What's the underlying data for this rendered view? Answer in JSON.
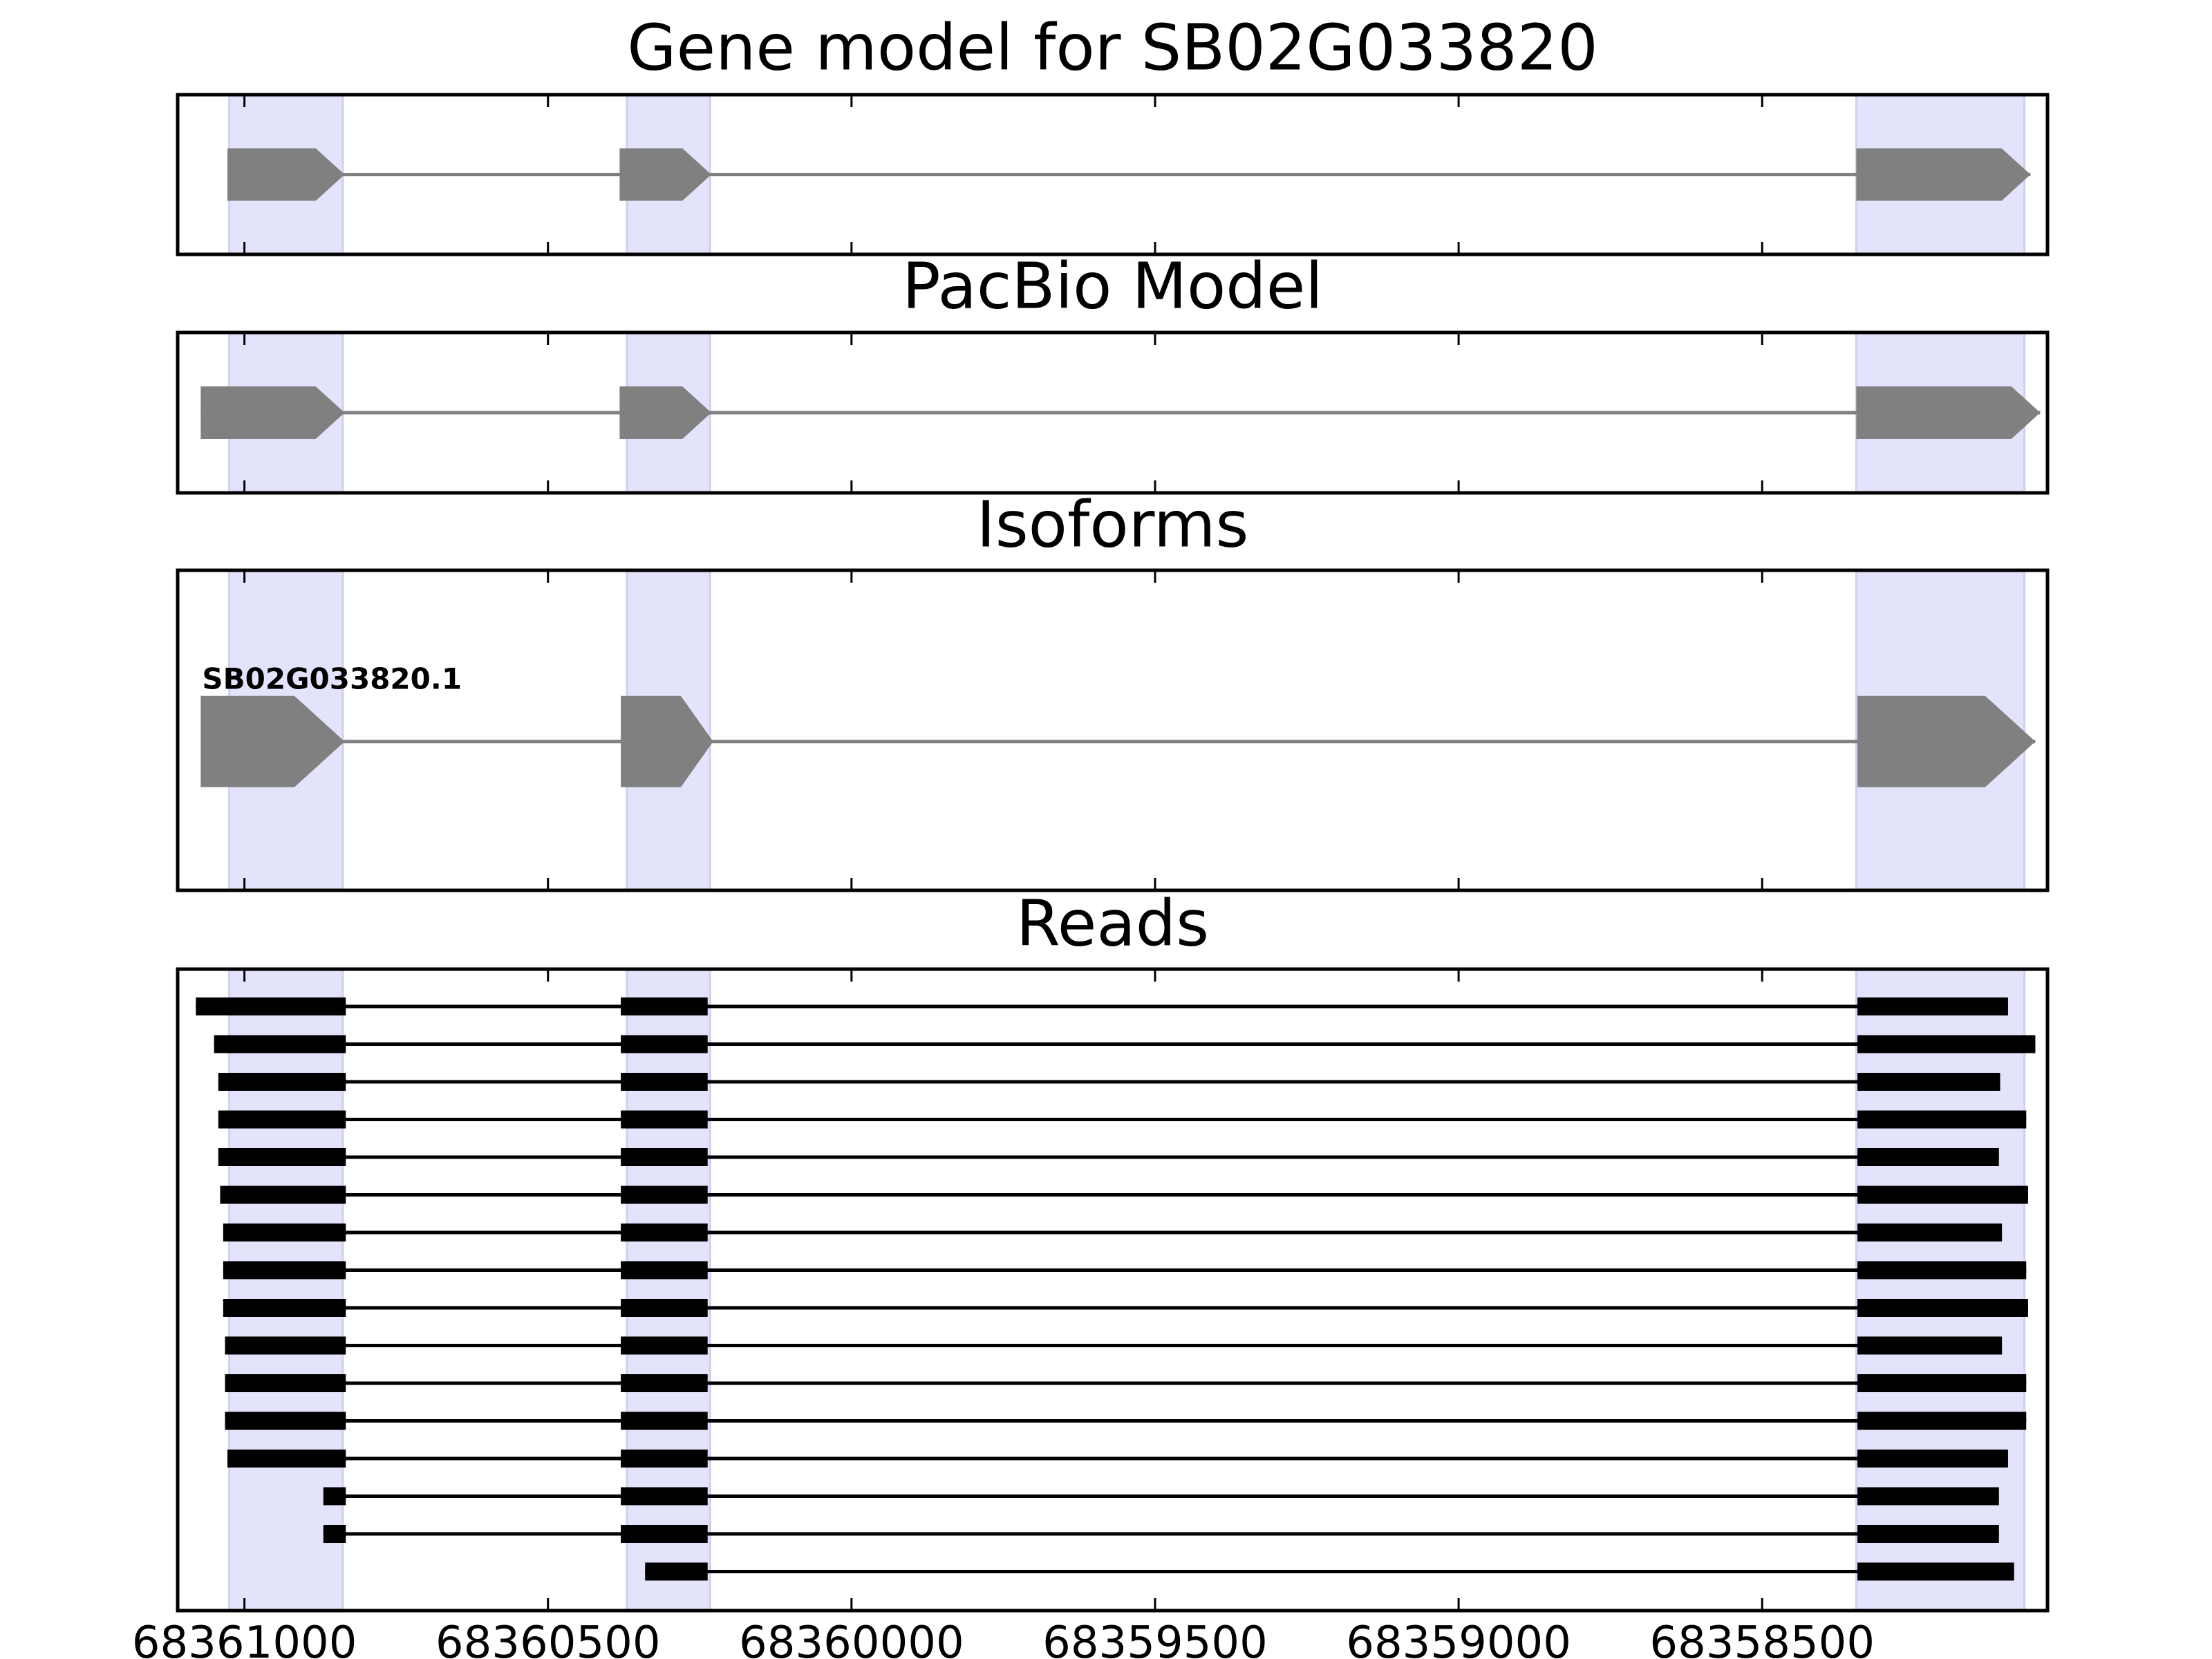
{
  "chart_data": {
    "type": "gene-structure",
    "x_reversed": true,
    "xlim": [
      68361110,
      68358030
    ],
    "xticks": [
      68361000,
      68360500,
      68360000,
      68359500,
      68359000,
      68358500
    ],
    "xtick_labels": [
      "68361000",
      "68360500",
      "68360000",
      "68359500",
      "68359000",
      "68358500"
    ],
    "exon_highlights": [
      [
        68361025,
        68360838
      ],
      [
        68360370,
        68360233
      ],
      [
        68358345,
        68358068
      ]
    ],
    "highlight_color": "#e3e3fb",
    "feature_color": "#808080",
    "read_color": "#000000",
    "panels": [
      {
        "title": "Gene model for SB02G033820",
        "kind": "model",
        "exons": [
          [
            68361028,
            68360835
          ],
          [
            68360382,
            68360231
          ],
          [
            68358345,
            68358058
          ]
        ]
      },
      {
        "title": "PacBio Model",
        "kind": "model",
        "exons": [
          [
            68361072,
            68360835
          ],
          [
            68360382,
            68360231
          ],
          [
            68358345,
            68358042
          ]
        ]
      },
      {
        "title": "Isoforms",
        "kind": "isoform",
        "isoforms": [
          {
            "name": "SB02G033820.1",
            "exons": [
              [
                68361072,
                68360835
              ],
              [
                68360380,
                68360228
              ],
              [
                68358343,
                68358050
              ]
            ]
          }
        ]
      },
      {
        "title": "Reads",
        "kind": "reads",
        "reads": [
          [
            [
              68361080,
              68360833
            ],
            [
              68360380,
              68360237
            ],
            [
              68358343,
              68358095
            ]
          ],
          [
            [
              68361050,
              68360833
            ],
            [
              68360380,
              68360237
            ],
            [
              68358343,
              68358050
            ]
          ],
          [
            [
              68361043,
              68360833
            ],
            [
              68360380,
              68360237
            ],
            [
              68358343,
              68358108
            ]
          ],
          [
            [
              68361043,
              68360833
            ],
            [
              68360380,
              68360237
            ],
            [
              68358343,
              68358065
            ]
          ],
          [
            [
              68361043,
              68360833
            ],
            [
              68360380,
              68360237
            ],
            [
              68358343,
              68358110
            ]
          ],
          [
            [
              68361040,
              68360833
            ],
            [
              68360380,
              68360237
            ],
            [
              68358343,
              68358062
            ]
          ],
          [
            [
              68361035,
              68360833
            ],
            [
              68360380,
              68360237
            ],
            [
              68358343,
              68358105
            ]
          ],
          [
            [
              68361035,
              68360833
            ],
            [
              68360380,
              68360237
            ],
            [
              68358343,
              68358065
            ]
          ],
          [
            [
              68361035,
              68360833
            ],
            [
              68360380,
              68360237
            ],
            [
              68358343,
              68358062
            ]
          ],
          [
            [
              68361032,
              68360833
            ],
            [
              68360380,
              68360237
            ],
            [
              68358343,
              68358105
            ]
          ],
          [
            [
              68361032,
              68360833
            ],
            [
              68360380,
              68360237
            ],
            [
              68358343,
              68358065
            ]
          ],
          [
            [
              68361032,
              68360833
            ],
            [
              68360380,
              68360237
            ],
            [
              68358343,
              68358065
            ]
          ],
          [
            [
              68361028,
              68360833
            ],
            [
              68360380,
              68360237
            ],
            [
              68358343,
              68358095
            ]
          ],
          [
            [
              68360870,
              68360833
            ],
            [
              68360380,
              68360237
            ],
            [
              68358343,
              68358110
            ]
          ],
          [
            [
              68360870,
              68360833
            ],
            [
              68360380,
              68360237
            ],
            [
              68358343,
              68358110
            ]
          ],
          [
            [
              68360340,
              68360237
            ],
            [
              68358343,
              68358085
            ]
          ]
        ]
      }
    ]
  }
}
